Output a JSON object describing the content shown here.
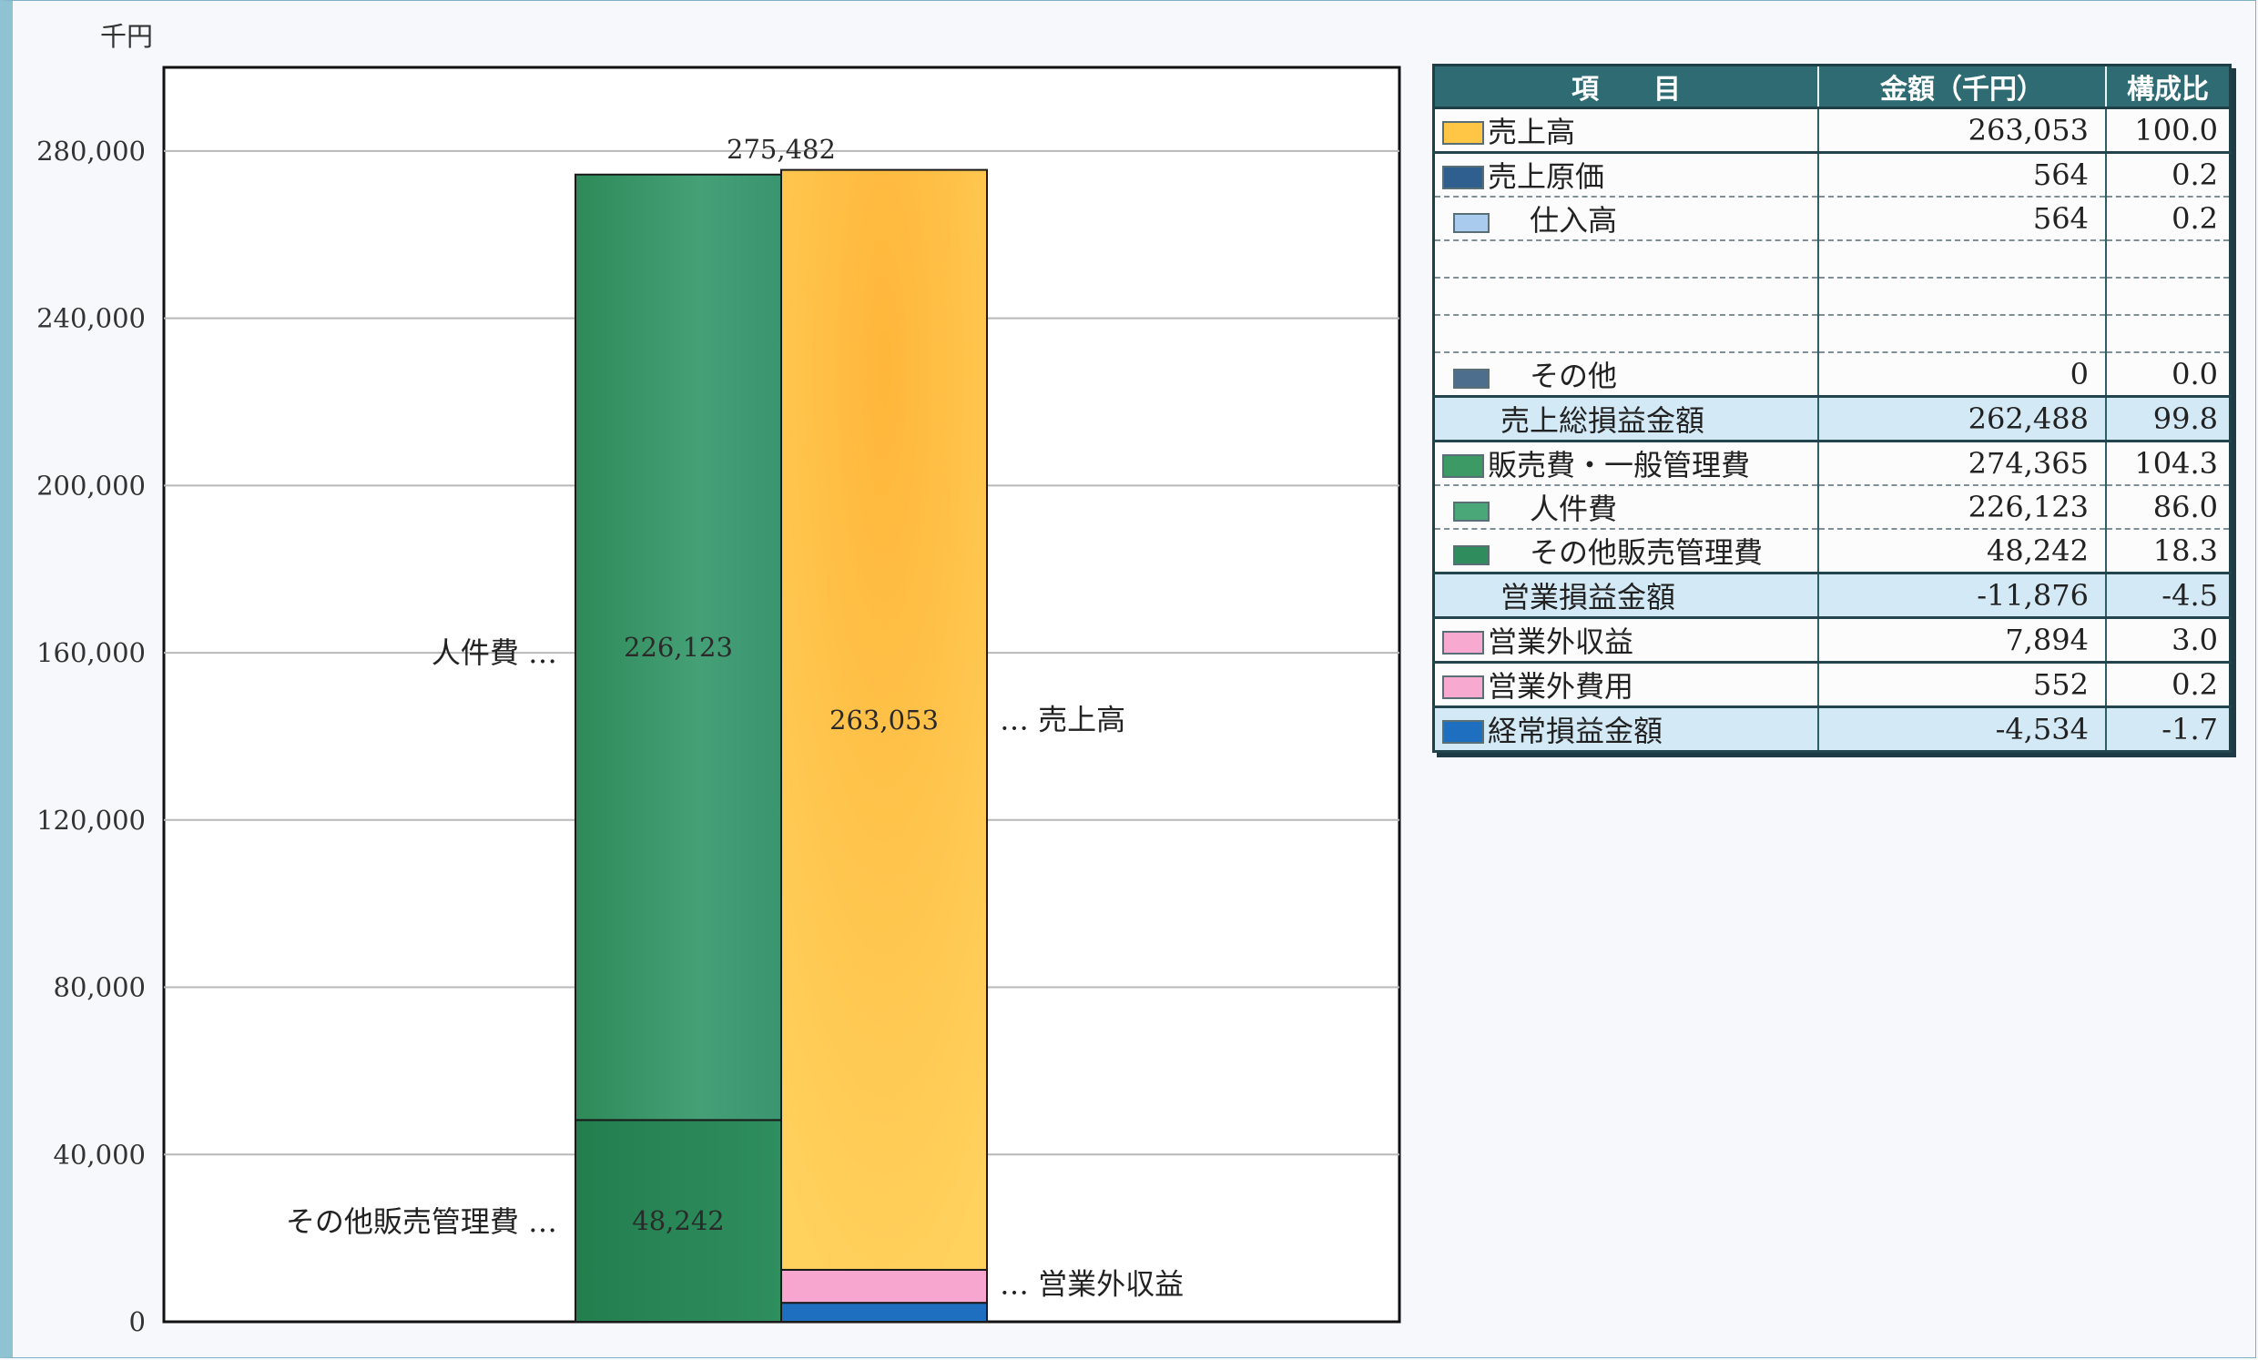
{
  "chart_data": {
    "type": "bar",
    "unit_label": "千円",
    "ylim": [
      0,
      300000
    ],
    "yticks": [
      0,
      40000,
      80000,
      120000,
      160000,
      200000,
      240000,
      280000
    ],
    "ytick_labels": [
      "0",
      "40,000",
      "80,000",
      "120,000",
      "160,000",
      "200,000",
      "240,000",
      "280,000"
    ],
    "grid": true,
    "columns": [
      {
        "total_label": "275,482",
        "segments": [
          {
            "name": "その他販売管理費",
            "value": 48242,
            "label": "48,242",
            "color": "#2f8c5c"
          },
          {
            "name": "人件費",
            "value": 226123,
            "label": "226,123",
            "color": "#3a9a6c"
          }
        ]
      },
      {
        "total_label": "",
        "segments": [
          {
            "name": "経常損益金額",
            "value": 4534,
            "label": "",
            "color": "#1f6fc0"
          },
          {
            "name": "営業外収益",
            "value": 7894,
            "label": "",
            "color": "#f6a6cf"
          },
          {
            "name": "売上高",
            "value": 263053,
            "label": "263,053",
            "color": "#ffc646"
          }
        ]
      }
    ],
    "category_labels": {
      "left": [
        {
          "text": "人件費 …",
          "at": 160000
        },
        {
          "text": "その他販売管理費 …",
          "at": 24000
        }
      ],
      "right": [
        {
          "text": "… 売上高",
          "at": 144000
        },
        {
          "text": "… 営業外収益",
          "at": 9000
        }
      ]
    }
  },
  "table": {
    "headers": [
      "項　　目",
      "金額（千円）",
      "構成比"
    ],
    "rows": [
      {
        "item": "売上高",
        "amount": "263,053",
        "ratio": "100.0",
        "swatch": "#ffc646",
        "indent": false,
        "style": "solid"
      },
      {
        "item": "売上原価",
        "amount": "564",
        "ratio": "0.2",
        "swatch": "#2e5f8f",
        "indent": false,
        "style": "dashed"
      },
      {
        "item": "仕入高",
        "amount": "564",
        "ratio": "0.2",
        "swatch": "#a9cbee",
        "indent": true,
        "style": "dashed"
      },
      {
        "item": "",
        "amount": "",
        "ratio": "",
        "swatch": "",
        "indent": true,
        "style": "dashed"
      },
      {
        "item": "",
        "amount": "",
        "ratio": "",
        "swatch": "",
        "indent": true,
        "style": "dashed"
      },
      {
        "item": "",
        "amount": "",
        "ratio": "",
        "swatch": "",
        "indent": true,
        "style": "dashed"
      },
      {
        "item": "その他",
        "amount": "0",
        "ratio": "0.0",
        "swatch": "#4d6e8c",
        "indent": true,
        "style": "solid"
      },
      {
        "item": "売上総損益金額",
        "amount": "262,488",
        "ratio": "99.8",
        "swatch": "",
        "indent": false,
        "style": "sub"
      },
      {
        "item": "販売費・一般管理費",
        "amount": "274,365",
        "ratio": "104.3",
        "swatch": "#3c9a64",
        "indent": false,
        "style": "dashed"
      },
      {
        "item": "人件費",
        "amount": "226,123",
        "ratio": "86.0",
        "swatch": "#4aa878",
        "indent": true,
        "style": "dashed"
      },
      {
        "item": "その他販売管理費",
        "amount": "48,242",
        "ratio": "18.3",
        "swatch": "#2f8c5c",
        "indent": true,
        "style": "solid"
      },
      {
        "item": "営業損益金額",
        "amount": "-11,876",
        "ratio": "-4.5",
        "swatch": "",
        "indent": false,
        "style": "sub"
      },
      {
        "item": "営業外収益",
        "amount": "7,894",
        "ratio": "3.0",
        "swatch": "#f8a9cf",
        "indent": false,
        "style": "solid"
      },
      {
        "item": "営業外費用",
        "amount": "552",
        "ratio": "0.2",
        "swatch": "#f8a9cf",
        "indent": false,
        "style": "solid"
      },
      {
        "item": "経常損益金額",
        "amount": "-4,534",
        "ratio": "-1.7",
        "swatch": "#1f6fc0",
        "indent": false,
        "style": "sub"
      }
    ]
  }
}
